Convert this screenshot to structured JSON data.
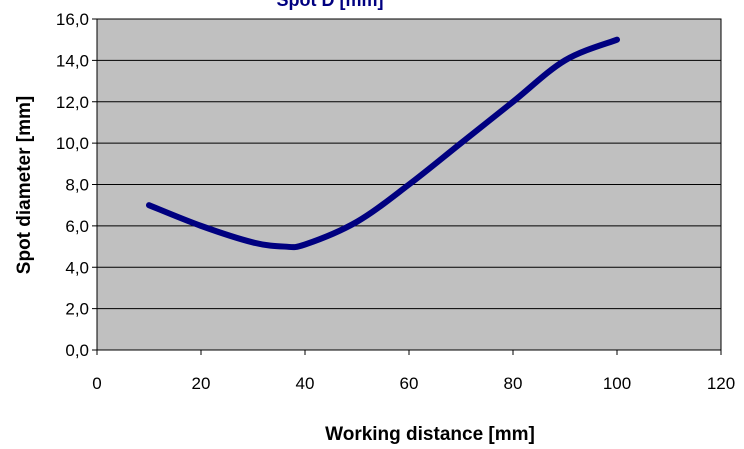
{
  "chart_data": {
    "type": "line",
    "title": "Spot D [mm]",
    "x_label": "Working distance [mm]",
    "y_label": "Spot diameter [mm]",
    "x": [
      10,
      20,
      30,
      36,
      40,
      50,
      60,
      70,
      80,
      90,
      100
    ],
    "series": [
      {
        "name": "Spot D [mm]",
        "color": "#000080",
        "values": [
          7.0,
          6.0,
          5.2,
          5.0,
          5.1,
          6.2,
          8.0,
          10.0,
          12.0,
          14.0,
          15.0
        ]
      }
    ],
    "xlim": [
      0,
      120
    ],
    "xticks": [
      0,
      20,
      40,
      60,
      80,
      100,
      120
    ],
    "ylim": [
      0,
      16
    ],
    "yticks": [
      {
        "value": 0,
        "label": "0,0"
      },
      {
        "value": 2,
        "label": "2,0"
      },
      {
        "value": 4,
        "label": "4,0"
      },
      {
        "value": 6,
        "label": "6,0"
      },
      {
        "value": 8,
        "label": "8,0"
      },
      {
        "value": 10,
        "label": "10,0"
      },
      {
        "value": 12,
        "label": "12,0"
      },
      {
        "value": 14,
        "label": "14,0"
      },
      {
        "value": 16,
        "label": "16,0"
      }
    ],
    "grid": true,
    "plot_background": "#c0c0c0"
  }
}
